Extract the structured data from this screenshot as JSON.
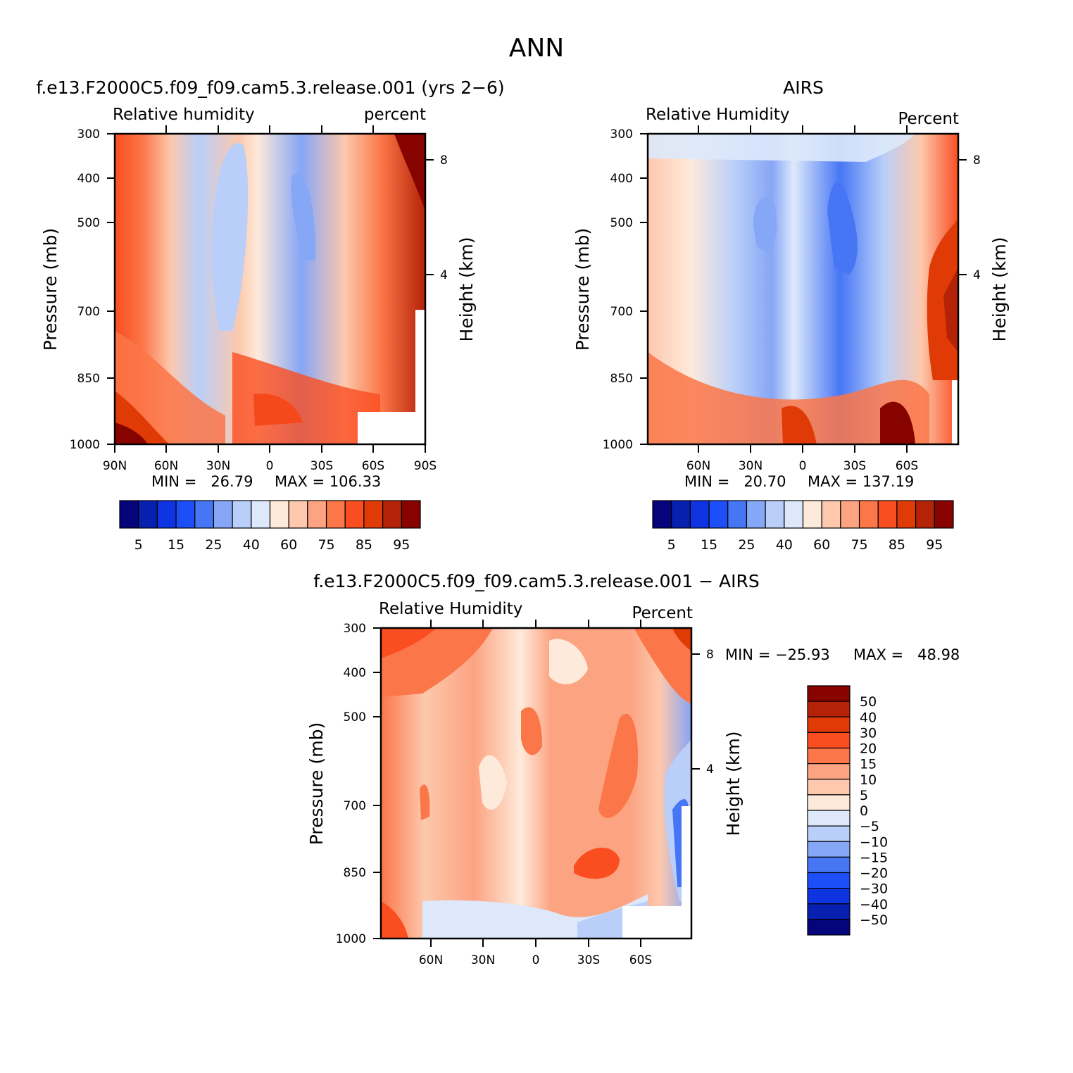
{
  "figure_title": "ANN",
  "colors": {
    "rh_palette": [
      "#05047a",
      "#0820b0",
      "#0e33e0",
      "#1c4ff7",
      "#4776f5",
      "#86a6f6",
      "#b9cff9",
      "#dde9fb",
      "#feeada",
      "#fdc8ad",
      "#fca381",
      "#fb7648",
      "#fa4e21",
      "#e03b06",
      "#b42207",
      "#870300"
    ],
    "diff_palette": [
      "#05047a",
      "#0820b0",
      "#0e33e0",
      "#1c4ff7",
      "#4776f5",
      "#86a6f6",
      "#b9cff9",
      "#dde9fb",
      "#feeada",
      "#fdc8ad",
      "#fca381",
      "#fb7648",
      "#fa4e21",
      "#e03b06",
      "#b42207",
      "#870300"
    ]
  },
  "chart_data": [
    {
      "type": "heatmap",
      "title": "f.e13.F2000C5.f09_f09.cam5.3.release.001 (yrs 2−6)",
      "left_label": "Relative humidity",
      "right_label": "percent",
      "xlabel": "",
      "ylabel": "Pressure (mb)",
      "y2label": "Height (km)",
      "x_ticks": [
        "90N",
        "60N",
        "30N",
        "0",
        "30S",
        "60S",
        "90S"
      ],
      "y_ticks": [
        "300",
        "400",
        "500",
        "700",
        "850",
        "1000"
      ],
      "y2_ticks": [
        "8",
        "4"
      ],
      "min_text": "MIN =   26.79",
      "max_text": "MAX = 106.33",
      "colorbar_labels": [
        "5",
        "15",
        "25",
        "40",
        "60",
        "75",
        "85",
        "95"
      ]
    },
    {
      "type": "heatmap",
      "title": "AIRS",
      "left_label": "Relative Humidity",
      "right_label": "Percent",
      "xlabel": "",
      "ylabel": "Pressure (mb)",
      "y2label": "Height (km)",
      "x_ticks": [
        "60N",
        "30N",
        "0",
        "30S",
        "60S"
      ],
      "y_ticks": [
        "300",
        "400",
        "500",
        "700",
        "850",
        "1000"
      ],
      "y2_ticks": [
        "8",
        "4"
      ],
      "min_text": "MIN =   20.70",
      "max_text": "MAX = 137.19",
      "colorbar_labels": [
        "5",
        "15",
        "25",
        "40",
        "60",
        "75",
        "85",
        "95"
      ]
    },
    {
      "type": "heatmap",
      "title": "f.e13.F2000C5.f09_f09.cam5.3.release.001 − AIRS",
      "left_label": "Relative Humidity",
      "right_label": "Percent",
      "xlabel": "",
      "ylabel": "Pressure (mb)",
      "y2label": "Height (km)",
      "x_ticks": [
        "60N",
        "30N",
        "0",
        "30S",
        "60S"
      ],
      "y_ticks": [
        "300",
        "400",
        "500",
        "700",
        "850",
        "1000"
      ],
      "y2_ticks": [
        "8",
        "4"
      ],
      "min_text": "MIN = −25.93",
      "max_text": "MAX =   48.98",
      "colorbar_labels": [
        "50",
        "40",
        "30",
        "20",
        "15",
        "10",
        "5",
        "0",
        "−5",
        "−10",
        "−15",
        "−20",
        "−30",
        "−40",
        "−50"
      ]
    }
  ]
}
